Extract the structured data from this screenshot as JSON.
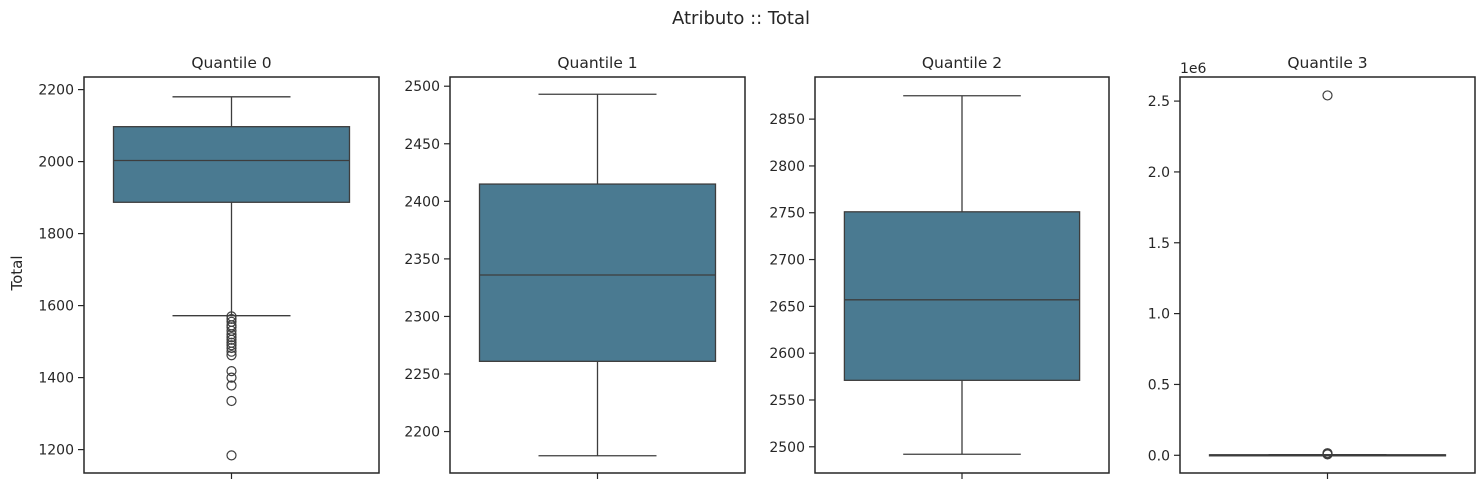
{
  "figure": {
    "suptitle": "Atributo :: Total",
    "ylabel": "Total"
  },
  "colors": {
    "box_fill": "#4a7a91",
    "line": "#3d3d3d",
    "axes_frame": "#262626",
    "text": "#262626"
  },
  "chart_data": [
    {
      "type": "box",
      "title": "Quantile 0",
      "ylabel": "Total",
      "ylim": [
        1135,
        2235
      ],
      "yticks": [
        1200,
        1400,
        1600,
        1800,
        2000,
        2200
      ],
      "ytick_labels": [
        "1200",
        "1400",
        "1600",
        "1800",
        "2000",
        "2200"
      ],
      "offset_label": "",
      "stats": {
        "whisker_low": 1572,
        "q1": 1887,
        "median": 2003,
        "q3": 2097,
        "whisker_high": 2180
      },
      "outliers": [
        1570,
        1563,
        1555,
        1545,
        1540,
        1530,
        1520,
        1512,
        1505,
        1497,
        1490,
        1482,
        1472,
        1462,
        1418,
        1400,
        1378,
        1335,
        1184
      ]
    },
    {
      "type": "box",
      "title": "Quantile 1",
      "ylabel": "",
      "ylim": [
        2164,
        2508
      ],
      "yticks": [
        2200,
        2250,
        2300,
        2350,
        2400,
        2450,
        2500
      ],
      "ytick_labels": [
        "2200",
        "2250",
        "2300",
        "2350",
        "2400",
        "2450",
        "2500"
      ],
      "offset_label": "",
      "stats": {
        "whisker_low": 2179,
        "q1": 2261,
        "median": 2336,
        "q3": 2415,
        "whisker_high": 2493
      },
      "outliers": []
    },
    {
      "type": "box",
      "title": "Quantile 2",
      "ylabel": "",
      "ylim": [
        2472,
        2895
      ],
      "yticks": [
        2500,
        2550,
        2600,
        2650,
        2700,
        2750,
        2800,
        2850
      ],
      "ytick_labels": [
        "2500",
        "2550",
        "2600",
        "2650",
        "2700",
        "2750",
        "2800",
        "2850"
      ],
      "offset_label": "",
      "stats": {
        "whisker_low": 2492,
        "q1": 2571,
        "median": 2657,
        "q3": 2751,
        "whisker_high": 2875
      },
      "outliers": []
    },
    {
      "type": "box",
      "title": "Quantile 3",
      "ylabel": "",
      "ylim": [
        -0.125,
        2.67
      ],
      "yticks": [
        0.0,
        0.5,
        1.0,
        1.5,
        2.0,
        2.5
      ],
      "ytick_labels": [
        "0.0",
        "0.5",
        "1.0",
        "1.5",
        "2.0",
        "2.5"
      ],
      "offset_label": "1e6",
      "stats": {
        "whisker_low": 0.0003,
        "q1": 0.0028,
        "median": 0.003,
        "q3": 0.0033,
        "whisker_high": 0.0045
      },
      "outliers": [
        0.006,
        0.009,
        0.012,
        0.015,
        2.54
      ]
    }
  ]
}
